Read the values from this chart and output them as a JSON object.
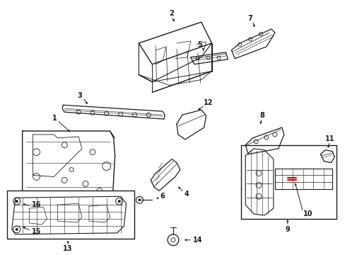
{
  "bg_color": "#ffffff",
  "line_color": "#1a1a1a",
  "red_color": "#cc0000",
  "figsize": [
    4.89,
    3.6
  ],
  "dpi": 100
}
